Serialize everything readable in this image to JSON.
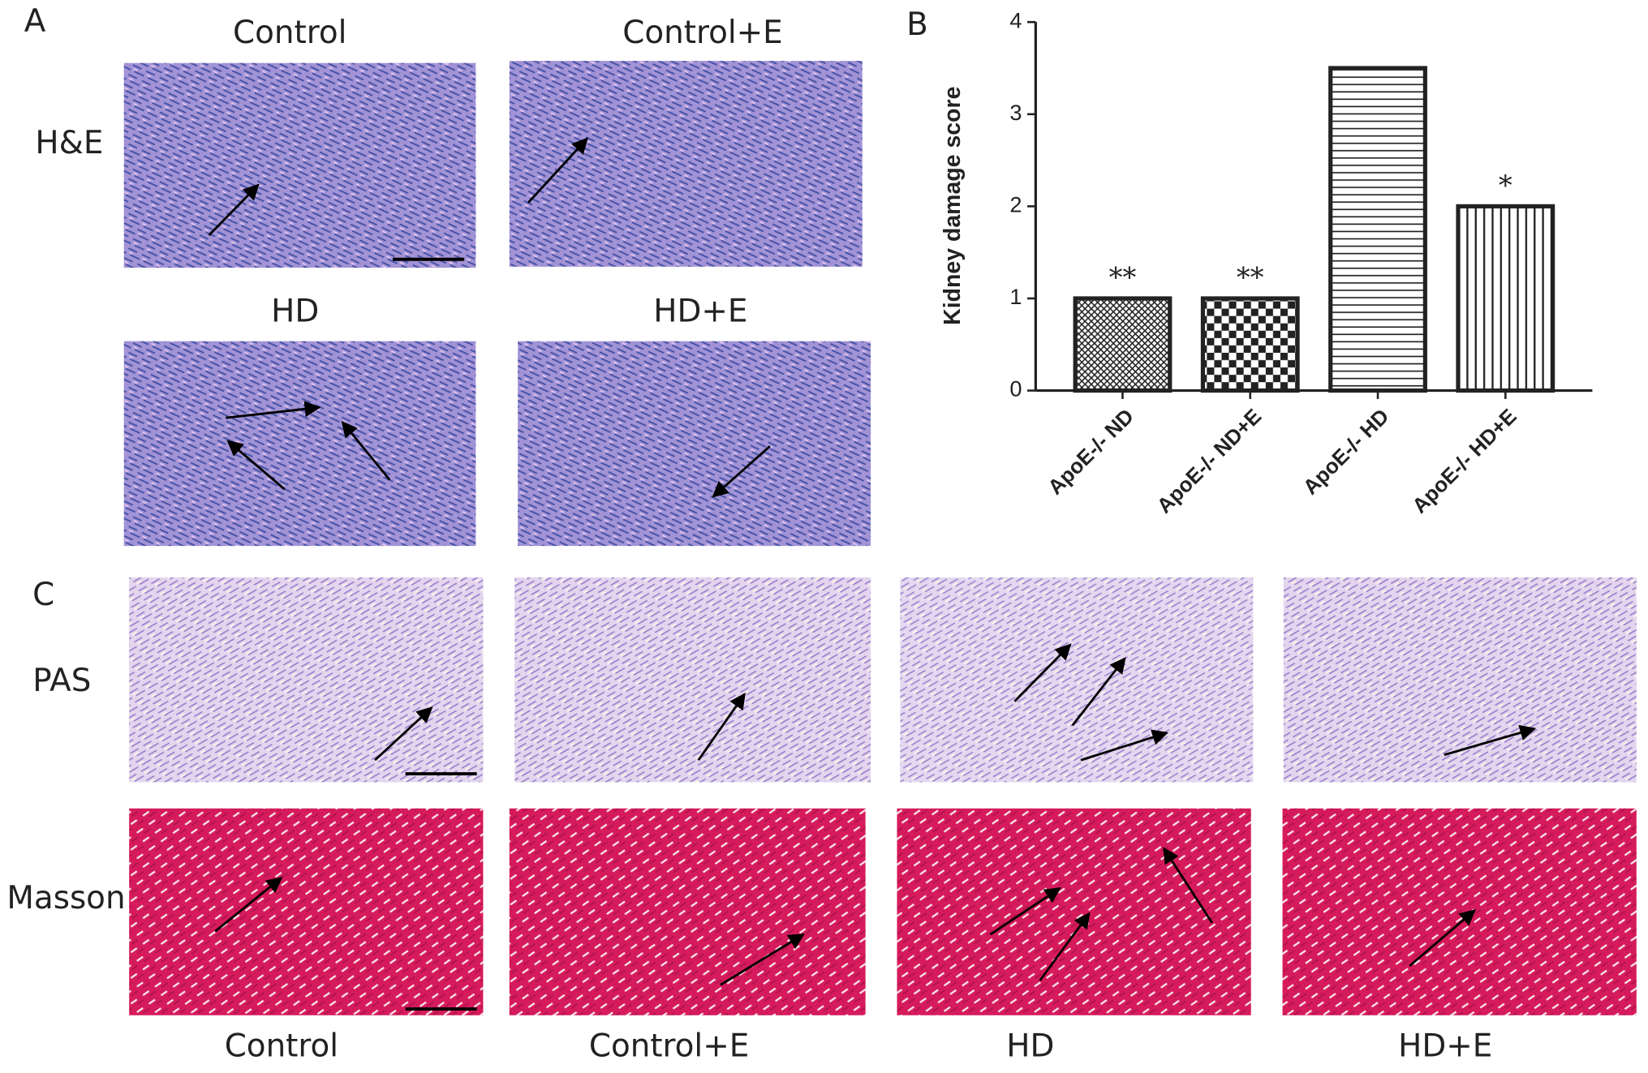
{
  "panel_a": {
    "label": "A",
    "stain_label": "H&E",
    "titles": [
      "Control",
      "Control+E",
      "HD",
      "HD+E"
    ]
  },
  "chart_data": {
    "type": "bar",
    "panel_label": "B",
    "ylabel": "Kidney damage score",
    "categories": [
      "ApoE-/- ND",
      "ApoE-/- ND+E",
      "ApoE-/- HD",
      "ApoE-/- HD+E"
    ],
    "values": [
      1,
      1,
      3.5,
      2
    ],
    "significance": [
      "**",
      "**",
      null,
      "*"
    ],
    "ylim": [
      0,
      4
    ],
    "yticks": [
      0,
      1,
      2,
      3,
      4
    ],
    "color": "#222222",
    "patterns": [
      "crosshatch",
      "checker",
      "horizontal",
      "vertical"
    ]
  },
  "panel_c": {
    "label": "C",
    "row_labels": [
      "PAS",
      "Masson"
    ],
    "column_titles": [
      "Control",
      "Control+E",
      "HD",
      "HD+E"
    ]
  }
}
